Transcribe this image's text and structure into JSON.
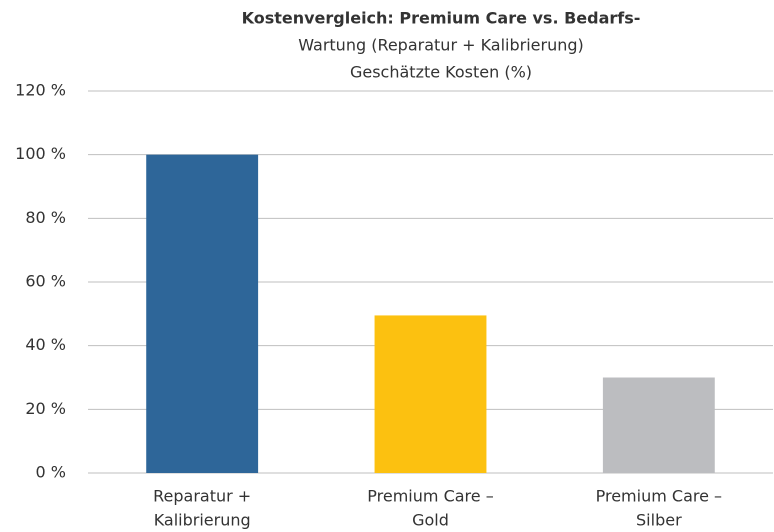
{
  "chart_data": {
    "type": "bar",
    "title": "Kostenvergleich: Premium Care vs. Bedarfs-",
    "subtitle": [
      "Wartung (Reparatur + Kalibrierung)",
      "Geschätzte Kosten (%)"
    ],
    "categories": [
      [
        "Reparatur +",
        "Kalibrierung"
      ],
      [
        "Premium Care –",
        "Gold"
      ],
      [
        "Premium Care –",
        "Silber"
      ]
    ],
    "values": [
      100,
      49.5,
      30
    ],
    "colors": [
      "#2e6699",
      "#fcc110",
      "#bcbdc0"
    ],
    "ylim": [
      0,
      120
    ],
    "yticks": [
      {
        "value": 0,
        "label": "0 %"
      },
      {
        "value": 20,
        "label": "20 %"
      },
      {
        "value": 40,
        "label": "40 %"
      },
      {
        "value": 60,
        "label": "60 %"
      },
      {
        "value": 80,
        "label": "80 %"
      },
      {
        "value": 100,
        "label": "100 %"
      },
      {
        "value": 120,
        "label": "120 %"
      }
    ],
    "grid": true
  }
}
